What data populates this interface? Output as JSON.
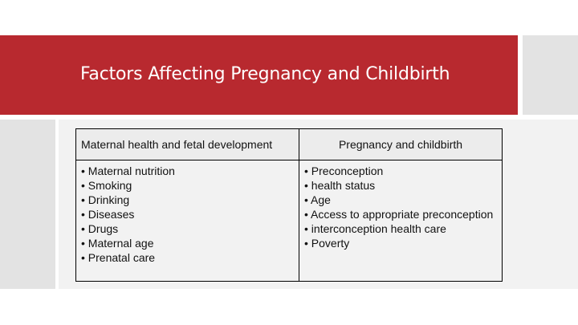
{
  "slide": {
    "title": "Factors Affecting Pregnancy and Childbirth"
  },
  "table": {
    "headers": [
      "Maternal health and fetal development",
      "Pregnancy and childbirth"
    ],
    "columns": [
      [
        "• Maternal nutrition",
        "• Smoking",
        "• Drinking",
        "• Diseases",
        "• Drugs",
        "• Maternal age",
        "• Prenatal care"
      ],
      [
        "• Preconception",
        "• health status",
        "• Age",
        "• Access to appropriate preconception",
        "• interconception health care",
        "• Poverty"
      ]
    ]
  },
  "colors": {
    "title_band": "#b8292f",
    "side_gray": "#e3e3e3",
    "panel_gray": "#f2f2f2"
  }
}
